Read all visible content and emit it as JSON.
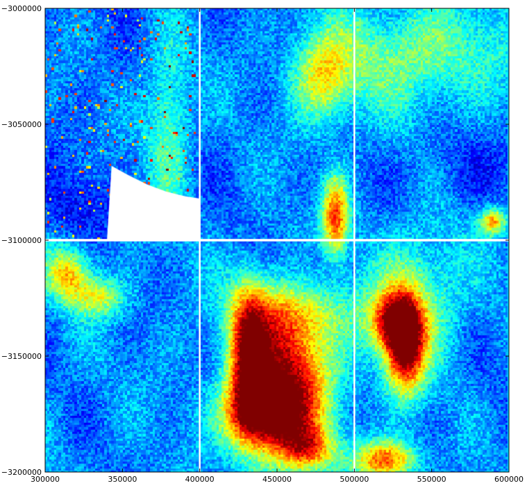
{
  "chart_data": {
    "type": "heatmap",
    "title": "",
    "xlabel": "",
    "ylabel": "",
    "xlim": [
      300000,
      600000
    ],
    "ylim": [
      -3200000,
      -3000000
    ],
    "xticks": [
      300000,
      350000,
      400000,
      450000,
      500000,
      550000,
      600000
    ],
    "xtick_labels": [
      "300000",
      "350000",
      "400000",
      "450000",
      "500000",
      "550000",
      "600000"
    ],
    "yticks": [
      -3000000,
      -3050000,
      -3100000,
      -3150000,
      -3200000
    ],
    "ytick_labels": [
      "−3000000",
      "−3050000",
      "−3100000",
      "−3150000",
      "−3200000"
    ],
    "colormap": "jet",
    "value_range": [
      0,
      1
    ],
    "no_data_color": "#ffffff",
    "tile_boundaries_x": [
      400000,
      500000
    ],
    "tile_boundaries_y": [
      -3100000
    ],
    "no_data_region": {
      "description_free": true,
      "polygon": [
        [
          340000,
          -3100000
        ],
        [
          343000,
          -3068000
        ],
        [
          354000,
          -3072000
        ],
        [
          366000,
          -3076000
        ],
        [
          378000,
          -3079000
        ],
        [
          390000,
          -3081000
        ],
        [
          400000,
          -3082000
        ],
        [
          400000,
          -3100000
        ]
      ]
    },
    "hotspots": [
      {
        "x": 455000,
        "y": -3160000,
        "sx": 22000,
        "sy": 25000,
        "value": 0.72
      },
      {
        "x": 432000,
        "y": -3150000,
        "sx": 8000,
        "sy": 20000,
        "value": 0.55
      },
      {
        "x": 440000,
        "y": -3175000,
        "sx": 18000,
        "sy": 10000,
        "value": 0.5
      },
      {
        "x": 470000,
        "y": -3190000,
        "sx": 12000,
        "sy": 6000,
        "value": 0.35
      },
      {
        "x": 533000,
        "y": -3145000,
        "sx": 9000,
        "sy": 14000,
        "value": 0.78
      },
      {
        "x": 525000,
        "y": -3135000,
        "sx": 10000,
        "sy": 8000,
        "value": 0.45
      },
      {
        "x": 540000,
        "y": -3125000,
        "sx": 22000,
        "sy": 20000,
        "value": 0.25
      },
      {
        "x": 520000,
        "y": -3195000,
        "sx": 14000,
        "sy": 6000,
        "value": 0.55
      },
      {
        "x": 480000,
        "y": -3030000,
        "sx": 14000,
        "sy": 14000,
        "value": 0.35
      },
      {
        "x": 488000,
        "y": -3090000,
        "sx": 6000,
        "sy": 12000,
        "value": 0.55
      },
      {
        "x": 540000,
        "y": -3020000,
        "sx": 40000,
        "sy": 16000,
        "value": 0.25
      },
      {
        "x": 315000,
        "y": -3115000,
        "sx": 10000,
        "sy": 8000,
        "value": 0.4
      },
      {
        "x": 335000,
        "y": -3125000,
        "sx": 12000,
        "sy": 6000,
        "value": 0.3
      },
      {
        "x": 380000,
        "y": -3050000,
        "sx": 10000,
        "sy": 25000,
        "value": 0.25
      },
      {
        "x": 590000,
        "y": -3092000,
        "sx": 6000,
        "sy": 4000,
        "value": 0.45
      },
      {
        "x": 460000,
        "y": -3130000,
        "sx": 30000,
        "sy": 10000,
        "value": 0.2
      }
    ],
    "cold_spots": [
      {
        "x": 470000,
        "y": -3115000,
        "sx": 15000,
        "sy": 10000,
        "value": -0.12
      },
      {
        "x": 320000,
        "y": -3085000,
        "sx": 15000,
        "sy": 10000,
        "value": -0.1
      },
      {
        "x": 570000,
        "y": -3070000,
        "sx": 30000,
        "sy": 12000,
        "value": -0.08
      }
    ]
  }
}
